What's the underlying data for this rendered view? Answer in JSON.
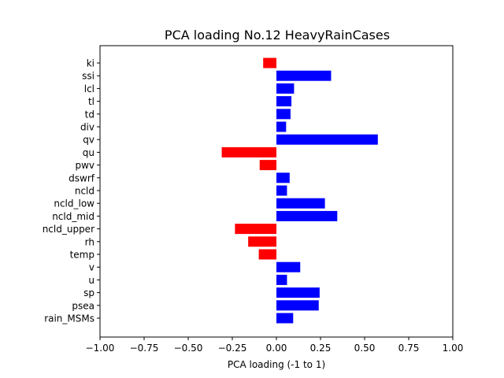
{
  "chart_data": {
    "type": "bar",
    "orientation": "horizontal",
    "title": "PCA loading No.12 HeavyRainCases",
    "xlabel": "PCA loading (-1 to 1)",
    "ylabel": "",
    "xlim": [
      -1.0,
      1.0
    ],
    "xticks": [
      "−1.00",
      "−0.75",
      "−0.50",
      "−0.25",
      "0.00",
      "0.25",
      "0.50",
      "0.75",
      "1.00"
    ],
    "xtick_values": [
      -1.0,
      -0.75,
      -0.5,
      -0.25,
      0.0,
      0.25,
      0.5,
      0.75,
      1.0
    ],
    "grid": false,
    "legend": "none",
    "colors": {
      "positive": "#0000ff",
      "negative": "#ff0000"
    },
    "categories": [
      "ki",
      "ssi",
      "lcl",
      "tl",
      "td",
      "div",
      "qv",
      "qu",
      "pwv",
      "dswrf",
      "ncld",
      "ncld_low",
      "ncld_mid",
      "ncld_upper",
      "rh",
      "temp",
      "v",
      "u",
      "sp",
      "psea",
      "rain_MSMs"
    ],
    "values": [
      -0.075,
      0.31,
      0.1,
      0.085,
      0.08,
      0.055,
      0.575,
      -0.31,
      -0.095,
      0.075,
      0.06,
      0.275,
      0.345,
      -0.235,
      -0.16,
      -0.1,
      0.135,
      0.06,
      0.245,
      0.24,
      0.095
    ]
  }
}
